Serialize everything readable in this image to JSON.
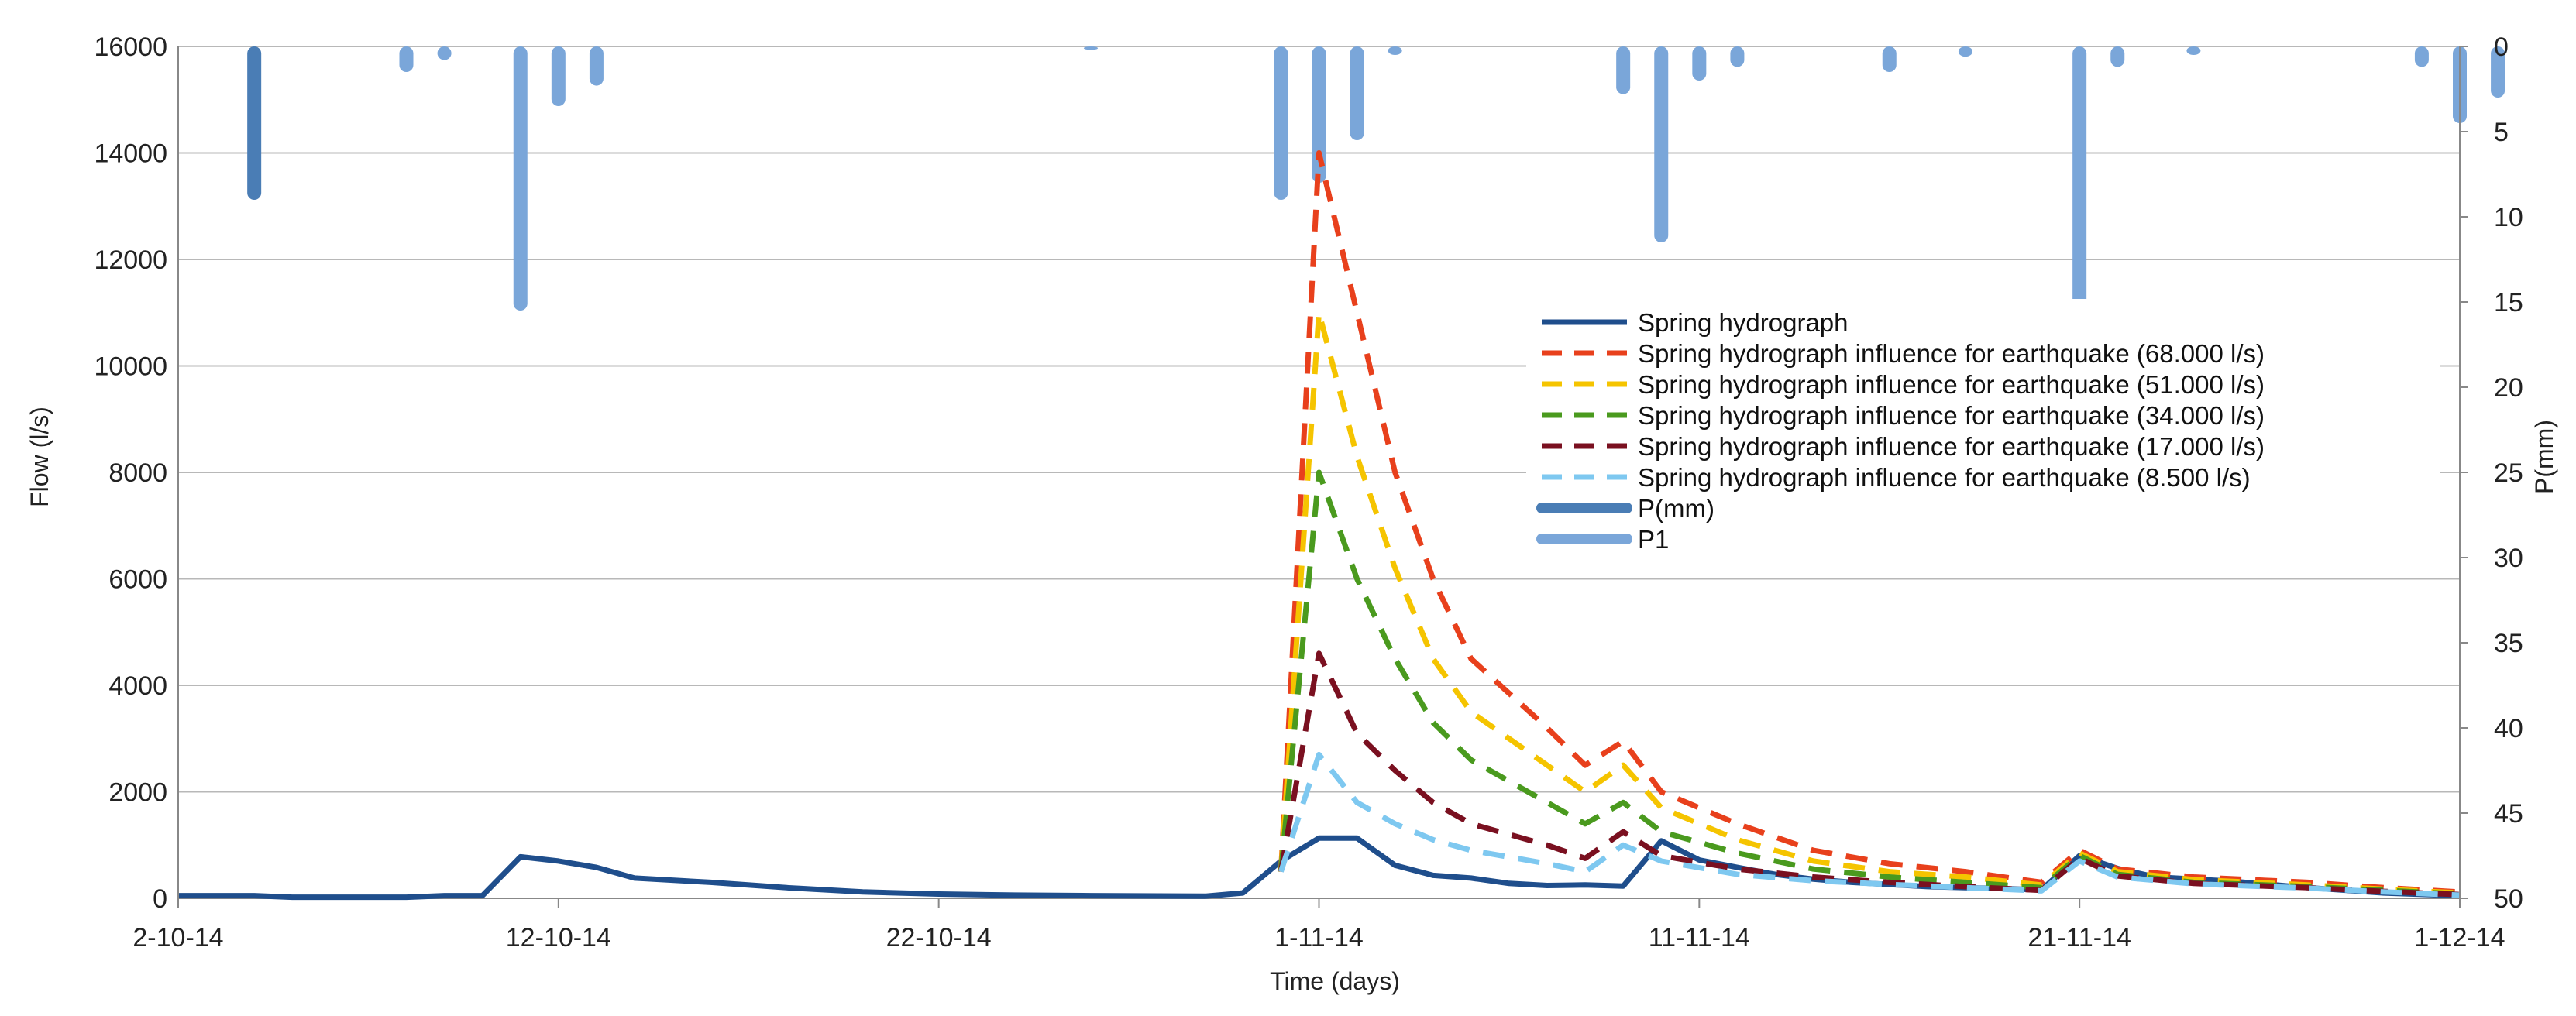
{
  "chart_data": {
    "type": "line",
    "title": "",
    "xlabel": "Time (days)",
    "ylabel": "Flow (l/s)",
    "y2label": "P(mm)",
    "x_range": [
      "2014-10-02",
      "2014-12-01"
    ],
    "x_ticks": [
      {
        "date": "2014-10-02",
        "label": "2-10-14"
      },
      {
        "date": "2014-10-12",
        "label": "12-10-14"
      },
      {
        "date": "2014-10-22",
        "label": "22-10-14"
      },
      {
        "date": "2014-11-01",
        "label": "1-11-14"
      },
      {
        "date": "2014-11-11",
        "label": "11-11-14"
      },
      {
        "date": "2014-11-21",
        "label": "21-11-14"
      },
      {
        "date": "2014-12-01",
        "label": "1-12-14"
      }
    ],
    "ylim": [
      0,
      16000
    ],
    "y_ticks": [
      0,
      2000,
      4000,
      6000,
      8000,
      10000,
      12000,
      14000,
      16000
    ],
    "y2lim": [
      0,
      50
    ],
    "y2_inverted": true,
    "y2_ticks": [
      0,
      5,
      10,
      15,
      20,
      25,
      30,
      35,
      40,
      45,
      50
    ],
    "grid": "horizontal",
    "legend_position": "right",
    "series": [
      {
        "name": "Spring hydrograph",
        "color": "#1f4e8c",
        "style": "solid",
        "points": [
          [
            "2014-10-02",
            50
          ],
          [
            "2014-10-04",
            50
          ],
          [
            "2014-10-05",
            20
          ],
          [
            "2014-10-08",
            20
          ],
          [
            "2014-10-09",
            50
          ],
          [
            "2014-10-10",
            50
          ],
          [
            "2014-10-11",
            780
          ],
          [
            "2014-10-12",
            700
          ],
          [
            "2014-10-13",
            580
          ],
          [
            "2014-10-14",
            380
          ],
          [
            "2014-10-16",
            300
          ],
          [
            "2014-10-18",
            200
          ],
          [
            "2014-10-20",
            120
          ],
          [
            "2014-10-22",
            80
          ],
          [
            "2014-10-24",
            60
          ],
          [
            "2014-10-26",
            50
          ],
          [
            "2014-10-29",
            40
          ],
          [
            "2014-10-30",
            100
          ],
          [
            "2014-10-31",
            700
          ],
          [
            "2014-11-01",
            1130
          ],
          [
            "2014-11-02",
            1130
          ],
          [
            "2014-11-03",
            620
          ],
          [
            "2014-11-04",
            430
          ],
          [
            "2014-11-05",
            380
          ],
          [
            "2014-11-06",
            280
          ],
          [
            "2014-11-07",
            240
          ],
          [
            "2014-11-08",
            250
          ],
          [
            "2014-11-09",
            230
          ],
          [
            "2014-11-10",
            1080
          ],
          [
            "2014-11-11",
            720
          ],
          [
            "2014-11-12",
            580
          ],
          [
            "2014-11-13",
            450
          ],
          [
            "2014-11-14",
            360
          ],
          [
            "2014-11-15",
            300
          ],
          [
            "2014-11-17",
            220
          ],
          [
            "2014-11-19",
            180
          ],
          [
            "2014-11-20",
            160
          ],
          [
            "2014-11-21",
            800
          ],
          [
            "2014-11-22",
            560
          ],
          [
            "2014-11-23",
            400
          ],
          [
            "2014-11-25",
            320
          ],
          [
            "2014-11-27",
            200
          ],
          [
            "2014-11-29",
            100
          ],
          [
            "2014-12-01",
            50
          ]
        ]
      },
      {
        "name": "Spring hydrograph influence for earthquake (68.000 l/s)",
        "color": "#e8401c",
        "style": "dashed",
        "points": [
          [
            "2014-10-31",
            500
          ],
          [
            "2014-11-01",
            14000
          ],
          [
            "2014-11-02",
            11000
          ],
          [
            "2014-11-03",
            8000
          ],
          [
            "2014-11-04",
            6000
          ],
          [
            "2014-11-05",
            4500
          ],
          [
            "2014-11-07",
            3200
          ],
          [
            "2014-11-08",
            2500
          ],
          [
            "2014-11-09",
            2950
          ],
          [
            "2014-11-10",
            2000
          ],
          [
            "2014-11-12",
            1400
          ],
          [
            "2014-11-14",
            900
          ],
          [
            "2014-11-16",
            650
          ],
          [
            "2014-11-18",
            500
          ],
          [
            "2014-11-20",
            300
          ],
          [
            "2014-11-21",
            900
          ],
          [
            "2014-11-22",
            550
          ],
          [
            "2014-11-24",
            400
          ],
          [
            "2014-11-27",
            300
          ],
          [
            "2014-11-29",
            200
          ],
          [
            "2014-12-01",
            120
          ]
        ]
      },
      {
        "name": "Spring hydrograph influence for earthquake (51.000 l/s)",
        "color": "#f5c400",
        "style": "dashed",
        "points": [
          [
            "2014-10-31",
            500
          ],
          [
            "2014-11-01",
            11000
          ],
          [
            "2014-11-02",
            8300
          ],
          [
            "2014-11-03",
            6200
          ],
          [
            "2014-11-04",
            4500
          ],
          [
            "2014-11-05",
            3500
          ],
          [
            "2014-11-07",
            2500
          ],
          [
            "2014-11-08",
            2000
          ],
          [
            "2014-11-09",
            2500
          ],
          [
            "2014-11-10",
            1700
          ],
          [
            "2014-11-12",
            1100
          ],
          [
            "2014-11-14",
            700
          ],
          [
            "2014-11-16",
            500
          ],
          [
            "2014-11-18",
            400
          ],
          [
            "2014-11-20",
            250
          ],
          [
            "2014-11-21",
            850
          ],
          [
            "2014-11-22",
            500
          ],
          [
            "2014-11-24",
            350
          ],
          [
            "2014-11-27",
            250
          ],
          [
            "2014-11-29",
            170
          ],
          [
            "2014-12-01",
            100
          ]
        ]
      },
      {
        "name": "Spring hydrograph influence for earthquake (34.000 l/s)",
        "color": "#4a9a1e",
        "style": "dashed",
        "points": [
          [
            "2014-10-31",
            500
          ],
          [
            "2014-11-01",
            8000
          ],
          [
            "2014-11-02",
            6000
          ],
          [
            "2014-11-03",
            4500
          ],
          [
            "2014-11-04",
            3300
          ],
          [
            "2014-11-05",
            2600
          ],
          [
            "2014-11-07",
            1800
          ],
          [
            "2014-11-08",
            1400
          ],
          [
            "2014-11-09",
            1800
          ],
          [
            "2014-11-10",
            1250
          ],
          [
            "2014-11-12",
            850
          ],
          [
            "2014-11-14",
            550
          ],
          [
            "2014-11-16",
            400
          ],
          [
            "2014-11-18",
            300
          ],
          [
            "2014-11-20",
            200
          ],
          [
            "2014-11-21",
            800
          ],
          [
            "2014-11-22",
            450
          ],
          [
            "2014-11-24",
            300
          ],
          [
            "2014-11-27",
            220
          ],
          [
            "2014-11-29",
            150
          ],
          [
            "2014-12-01",
            80
          ]
        ]
      },
      {
        "name": "Spring hydrograph influence for earthquake (17.000 l/s)",
        "color": "#7a1020",
        "style": "dashed",
        "points": [
          [
            "2014-10-31",
            500
          ],
          [
            "2014-11-01",
            4600
          ],
          [
            "2014-11-02",
            3100
          ],
          [
            "2014-11-03",
            2400
          ],
          [
            "2014-11-04",
            1800
          ],
          [
            "2014-11-05",
            1400
          ],
          [
            "2014-11-07",
            1000
          ],
          [
            "2014-11-08",
            750
          ],
          [
            "2014-11-09",
            1250
          ],
          [
            "2014-11-10",
            800
          ],
          [
            "2014-11-12",
            550
          ],
          [
            "2014-11-14",
            400
          ],
          [
            "2014-11-16",
            300
          ],
          [
            "2014-11-18",
            220
          ],
          [
            "2014-11-20",
            150
          ],
          [
            "2014-11-21",
            750
          ],
          [
            "2014-11-22",
            420
          ],
          [
            "2014-11-24",
            280
          ],
          [
            "2014-11-27",
            200
          ],
          [
            "2014-11-29",
            130
          ],
          [
            "2014-12-01",
            70
          ]
        ]
      },
      {
        "name": "Spring hydrograph influence for earthquake (8.500 l/s)",
        "color": "#7ec8f0",
        "style": "dashed",
        "points": [
          [
            "2014-10-31",
            500
          ],
          [
            "2014-11-01",
            2700
          ],
          [
            "2014-11-02",
            1800
          ],
          [
            "2014-11-03",
            1400
          ],
          [
            "2014-11-04",
            1100
          ],
          [
            "2014-11-05",
            900
          ],
          [
            "2014-11-07",
            650
          ],
          [
            "2014-11-08",
            500
          ],
          [
            "2014-11-09",
            1000
          ],
          [
            "2014-11-10",
            700
          ],
          [
            "2014-11-12",
            450
          ],
          [
            "2014-11-14",
            330
          ],
          [
            "2014-11-16",
            260
          ],
          [
            "2014-11-18",
            200
          ],
          [
            "2014-11-20",
            140
          ],
          [
            "2014-11-21",
            700
          ],
          [
            "2014-11-22",
            400
          ],
          [
            "2014-11-24",
            270
          ],
          [
            "2014-11-27",
            190
          ],
          [
            "2014-11-29",
            120
          ],
          [
            "2014-12-01",
            60
          ]
        ]
      },
      {
        "name": "P(mm)",
        "color": "#4a7db5",
        "style": "bar",
        "axis": "y2",
        "points": [
          [
            "2014-10-04",
            9
          ]
        ]
      },
      {
        "name": "P1",
        "color": "#7aa6d9",
        "style": "bar",
        "axis": "y2",
        "points": [
          [
            "2014-10-08",
            1.5
          ],
          [
            "2014-10-09",
            0.8
          ],
          [
            "2014-10-11",
            15.5
          ],
          [
            "2014-10-12",
            3.5
          ],
          [
            "2014-10-13",
            2.3
          ],
          [
            "2014-10-26",
            0.2
          ],
          [
            "2014-10-31",
            9
          ],
          [
            "2014-11-01",
            8
          ],
          [
            "2014-11-02",
            5.5
          ],
          [
            "2014-11-03",
            0.5
          ],
          [
            "2014-11-09",
            2.8
          ],
          [
            "2014-11-10",
            11.5
          ],
          [
            "2014-11-11",
            2
          ],
          [
            "2014-11-12",
            1.2
          ],
          [
            "2014-11-16",
            1.5
          ],
          [
            "2014-11-18",
            0.6
          ],
          [
            "2014-11-21",
            15.7
          ],
          [
            "2014-11-22",
            1.2
          ],
          [
            "2014-11-24",
            0.5
          ],
          [
            "2014-11-30",
            1.2
          ],
          [
            "2014-12-01",
            4.5
          ],
          [
            "2014-12-02",
            3
          ]
        ]
      }
    ]
  }
}
